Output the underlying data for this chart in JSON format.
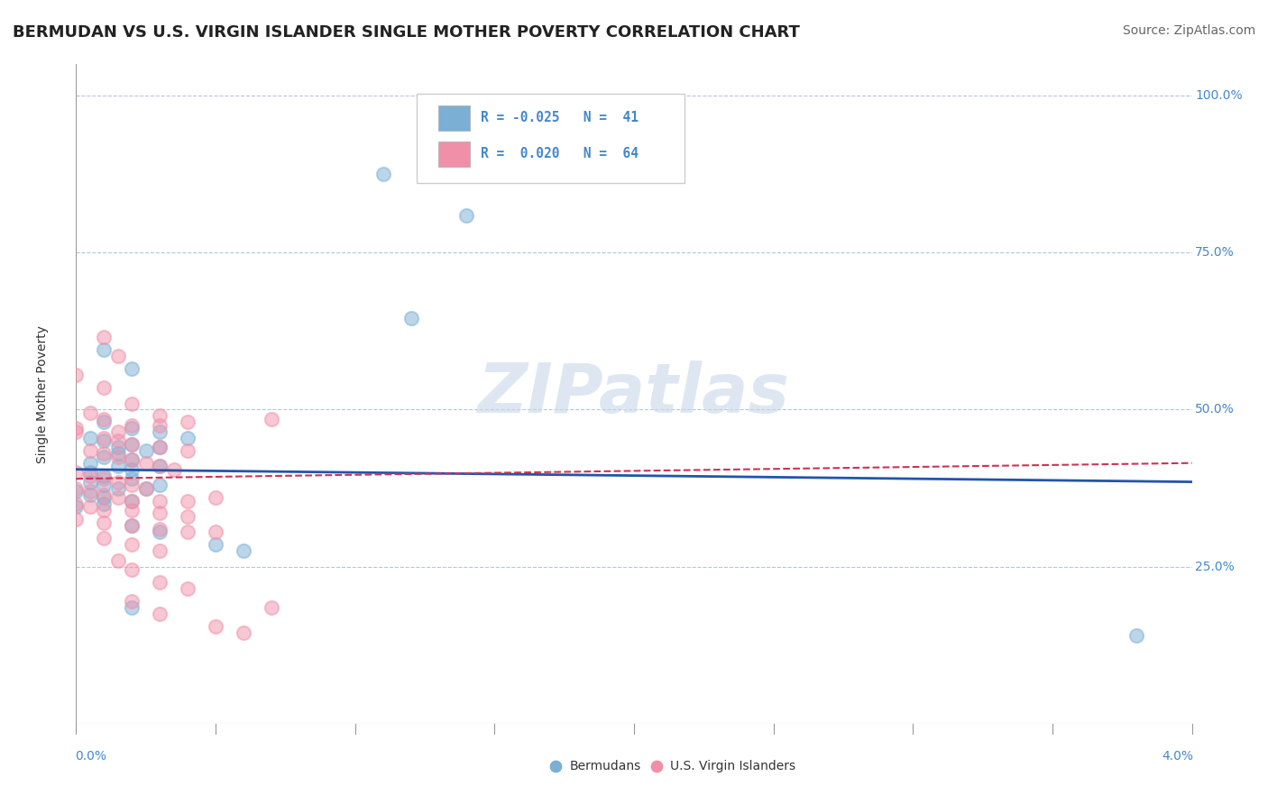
{
  "title": "BERMUDAN VS U.S. VIRGIN ISLANDER SINGLE MOTHER POVERTY CORRELATION CHART",
  "source": "Source: ZipAtlas.com",
  "ylabel": "Single Mother Poverty",
  "watermark": "ZIPatlas",
  "xlim": [
    0.0,
    0.04
  ],
  "ylim": [
    0.0,
    1.05
  ],
  "background_color": "#ffffff",
  "grid_color": "#b0c8dc",
  "title_fontsize": 13,
  "source_fontsize": 10,
  "axis_label_fontsize": 10,
  "tick_fontsize": 10,
  "watermark_color": "#c8d8e8",
  "watermark_fontsize": 55,
  "bermudans_color": "#7bafd4",
  "virgin_islanders_color": "#f090a8",
  "bermudans_line_color": "#2255aa",
  "virgin_islanders_line_color": "#cc3355",
  "bermudans_points": [
    [
      0.011,
      0.875
    ],
    [
      0.014,
      0.81
    ],
    [
      0.012,
      0.645
    ],
    [
      0.001,
      0.595
    ],
    [
      0.002,
      0.565
    ],
    [
      0.001,
      0.48
    ],
    [
      0.002,
      0.47
    ],
    [
      0.003,
      0.465
    ],
    [
      0.004,
      0.455
    ],
    [
      0.0005,
      0.455
    ],
    [
      0.001,
      0.45
    ],
    [
      0.0015,
      0.44
    ],
    [
      0.002,
      0.445
    ],
    [
      0.003,
      0.44
    ],
    [
      0.0025,
      0.435
    ],
    [
      0.0015,
      0.43
    ],
    [
      0.001,
      0.425
    ],
    [
      0.002,
      0.42
    ],
    [
      0.0005,
      0.415
    ],
    [
      0.0015,
      0.41
    ],
    [
      0.002,
      0.405
    ],
    [
      0.003,
      0.41
    ],
    [
      0.0005,
      0.4
    ],
    [
      0.001,
      0.395
    ],
    [
      0.002,
      0.39
    ],
    [
      0.0005,
      0.385
    ],
    [
      0.001,
      0.38
    ],
    [
      0.0015,
      0.375
    ],
    [
      0.003,
      0.38
    ],
    [
      0.0025,
      0.375
    ],
    [
      0.0,
      0.37
    ],
    [
      0.0005,
      0.365
    ],
    [
      0.001,
      0.36
    ],
    [
      0.002,
      0.355
    ],
    [
      0.001,
      0.35
    ],
    [
      0.0,
      0.345
    ],
    [
      0.002,
      0.315
    ],
    [
      0.003,
      0.305
    ],
    [
      0.005,
      0.285
    ],
    [
      0.006,
      0.275
    ],
    [
      0.002,
      0.185
    ],
    [
      0.038,
      0.14
    ]
  ],
  "virgin_islanders_points": [
    [
      0.001,
      0.615
    ],
    [
      0.0015,
      0.585
    ],
    [
      0.0,
      0.555
    ],
    [
      0.001,
      0.535
    ],
    [
      0.002,
      0.51
    ],
    [
      0.0005,
      0.495
    ],
    [
      0.001,
      0.485
    ],
    [
      0.002,
      0.475
    ],
    [
      0.003,
      0.475
    ],
    [
      0.0,
      0.47
    ],
    [
      0.0015,
      0.465
    ],
    [
      0.003,
      0.49
    ],
    [
      0.004,
      0.48
    ],
    [
      0.007,
      0.485
    ],
    [
      0.0,
      0.465
    ],
    [
      0.001,
      0.455
    ],
    [
      0.0015,
      0.45
    ],
    [
      0.002,
      0.445
    ],
    [
      0.003,
      0.44
    ],
    [
      0.004,
      0.435
    ],
    [
      0.0005,
      0.435
    ],
    [
      0.001,
      0.43
    ],
    [
      0.0015,
      0.425
    ],
    [
      0.002,
      0.42
    ],
    [
      0.0025,
      0.415
    ],
    [
      0.003,
      0.41
    ],
    [
      0.0035,
      0.405
    ],
    [
      0.0,
      0.4
    ],
    [
      0.0005,
      0.395
    ],
    [
      0.001,
      0.39
    ],
    [
      0.0015,
      0.385
    ],
    [
      0.002,
      0.38
    ],
    [
      0.0025,
      0.375
    ],
    [
      0.0,
      0.375
    ],
    [
      0.0005,
      0.37
    ],
    [
      0.001,
      0.365
    ],
    [
      0.0015,
      0.36
    ],
    [
      0.002,
      0.355
    ],
    [
      0.003,
      0.355
    ],
    [
      0.004,
      0.355
    ],
    [
      0.005,
      0.36
    ],
    [
      0.0,
      0.35
    ],
    [
      0.0005,
      0.345
    ],
    [
      0.001,
      0.34
    ],
    [
      0.002,
      0.34
    ],
    [
      0.003,
      0.335
    ],
    [
      0.004,
      0.33
    ],
    [
      0.0,
      0.325
    ],
    [
      0.001,
      0.32
    ],
    [
      0.002,
      0.315
    ],
    [
      0.003,
      0.31
    ],
    [
      0.004,
      0.305
    ],
    [
      0.005,
      0.305
    ],
    [
      0.001,
      0.295
    ],
    [
      0.002,
      0.285
    ],
    [
      0.003,
      0.275
    ],
    [
      0.0015,
      0.26
    ],
    [
      0.002,
      0.245
    ],
    [
      0.003,
      0.225
    ],
    [
      0.004,
      0.215
    ],
    [
      0.002,
      0.195
    ],
    [
      0.003,
      0.175
    ],
    [
      0.005,
      0.155
    ],
    [
      0.006,
      0.145
    ],
    [
      0.007,
      0.185
    ]
  ]
}
